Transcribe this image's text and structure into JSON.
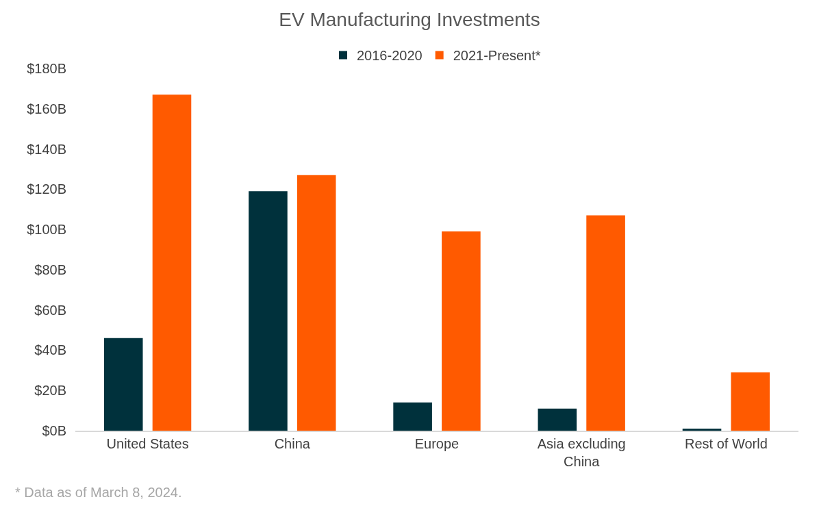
{
  "chart_data": {
    "type": "bar",
    "title": "EV Manufacturing Investments",
    "categories": [
      "United States",
      "China",
      "Europe",
      "Asia excluding China",
      "Rest of World"
    ],
    "series": [
      {
        "name": "2016-2020",
        "color": "#00313c",
        "values": [
          46,
          119,
          14,
          11,
          1
        ]
      },
      {
        "name": "2021-Present*",
        "color": "#ff5a00",
        "values": [
          167,
          127,
          99,
          107,
          29
        ]
      }
    ],
    "ylim": [
      0,
      180
    ],
    "yticks": [
      {
        "value": 0,
        "label": "$0B"
      },
      {
        "value": 20,
        "label": "$20B"
      },
      {
        "value": 40,
        "label": "$40B"
      },
      {
        "value": 60,
        "label": "$60B"
      },
      {
        "value": 80,
        "label": "$80B"
      },
      {
        "value": 100,
        "label": "$100B"
      },
      {
        "value": 120,
        "label": "$120B"
      },
      {
        "value": 140,
        "label": "$140B"
      },
      {
        "value": 160,
        "label": "$160B"
      },
      {
        "value": 180,
        "label": "$180B"
      }
    ],
    "legend": "top",
    "annotations": [
      "* Data as of March 8, 2024."
    ]
  }
}
